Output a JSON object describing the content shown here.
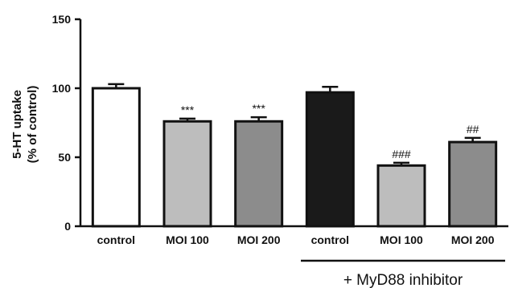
{
  "chart_data": {
    "type": "bar",
    "title": "",
    "xlabel": "",
    "ylabel_line1": "5-HT uptake",
    "ylabel_line2": "(% of control)",
    "ylim": [
      0,
      150
    ],
    "yticks": [
      0,
      50,
      100,
      150
    ],
    "categories": [
      "control",
      "MOI 100",
      "MOI 200",
      "control",
      "MOI 100",
      "MOI 200"
    ],
    "values": [
      100,
      76,
      76,
      97,
      44,
      61
    ],
    "errors": [
      3,
      2,
      3,
      4,
      2,
      3
    ],
    "significance": [
      "",
      "***",
      "***",
      "",
      "###",
      "##"
    ],
    "bar_colors": [
      "#ffffff",
      "#bdbdbd",
      "#8c8c8c",
      "#1a1a1a",
      "#bdbdbd",
      "#8c8c8c"
    ],
    "group_label": "+ MyD88 inhibitor",
    "group_span": [
      3,
      5
    ],
    "grid": false
  }
}
